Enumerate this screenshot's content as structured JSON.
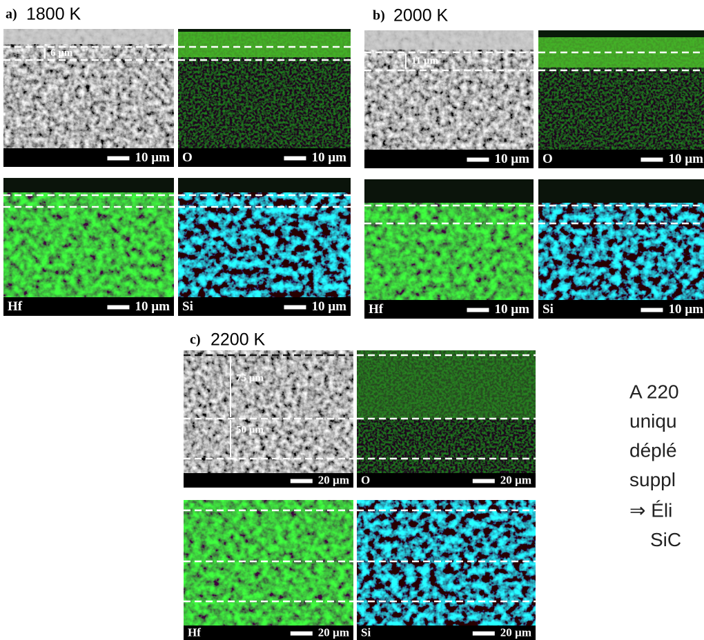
{
  "panels": [
    {
      "label": "a)",
      "temperature": "1800 K",
      "sem": {
        "thickness": [
          "6 µm"
        ],
        "scale": "10 µm"
      },
      "maps": [
        {
          "element": "O",
          "scale": "10 µm"
        },
        {
          "element": "Hf",
          "scale": "10 µm"
        },
        {
          "element": "Si",
          "scale": "10 µm"
        }
      ]
    },
    {
      "label": "b)",
      "temperature": "2000 K",
      "sem": {
        "thickness": [
          "11 µm"
        ],
        "scale": "10 µm"
      },
      "maps": [
        {
          "element": "O",
          "scale": "10 µm"
        },
        {
          "element": "Hf",
          "scale": "10 µm"
        },
        {
          "element": "Si",
          "scale": "10 µm"
        }
      ]
    },
    {
      "label": "c)",
      "temperature": "2200 K",
      "sem": {
        "thickness": [
          "75 µm",
          "50 µm"
        ],
        "scale": "20 µm"
      },
      "maps": [
        {
          "element": "O",
          "scale": "20 µm"
        },
        {
          "element": "Hf",
          "scale": "20 µm"
        },
        {
          "element": "Si",
          "scale": "20 µm"
        }
      ]
    }
  ],
  "text": {
    "lines": [
      "A 220",
      "uniqu",
      "déplé",
      "suppl",
      "⇒ Éli",
      "SiC"
    ]
  }
}
